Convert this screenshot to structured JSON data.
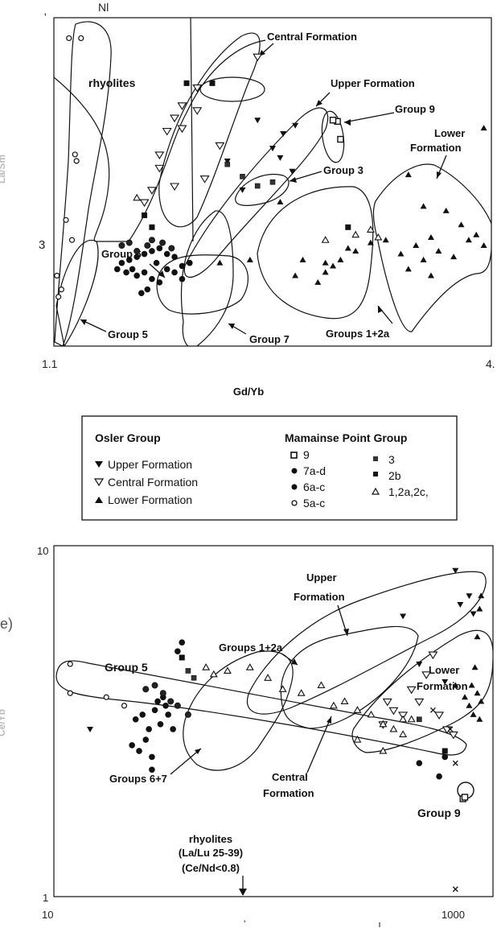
{
  "chart_data": [
    {
      "type": "scatter",
      "title": "",
      "top_fragment": "Nl",
      "xlabel": "Gd/Yb",
      "ylabel_fragment": "La/Sm",
      "x_ticks": [
        "1.1",
        "4."
      ],
      "y_ticks": [
        "3"
      ],
      "top_tick_fragment": "'",
      "annotations": [
        "Central Formation",
        "rhyolites",
        "Upper Formation",
        "Group 9",
        "Lower Formation",
        "Group 3",
        "Group 6",
        "Group 5",
        "Group 7",
        "Groups 1+2a"
      ],
      "groups": [
        {
          "name": "Upper Formation",
          "symbol": "down-triangle-filled",
          "points": [
            [
              2.45,
              6.4
            ],
            [
              2.62,
              5.9
            ],
            [
              2.6,
              5.1
            ],
            [
              2.68,
              4.7
            ],
            [
              2.35,
              4.2
            ],
            [
              2.55,
              5.4
            ],
            [
              2.7,
              6.2
            ],
            [
              2.25,
              5.0
            ]
          ]
        },
        {
          "name": "Central Formation",
          "symbol": "down-triangle-open",
          "points": [
            [
              2.45,
              9.4
            ],
            [
              2.05,
              7.8
            ],
            [
              1.95,
              7.0
            ],
            [
              1.9,
              6.5
            ],
            [
              1.85,
              6.0
            ],
            [
              1.8,
              5.2
            ],
            [
              1.8,
              4.8
            ],
            [
              1.75,
              4.2
            ],
            [
              1.7,
              3.9
            ],
            [
              2.2,
              5.5
            ],
            [
              2.05,
              6.8
            ],
            [
              1.95,
              6.1
            ],
            [
              2.1,
              4.5
            ],
            [
              1.9,
              4.3
            ]
          ]
        },
        {
          "name": "Lower Formation",
          "symbol": "up-triangle-filled",
          "points": [
            [
              3.95,
              6.1
            ],
            [
              3.45,
              4.6
            ],
            [
              3.55,
              3.8
            ],
            [
              3.7,
              3.7
            ],
            [
              3.8,
              3.4
            ],
            [
              3.9,
              3.2
            ],
            [
              3.95,
              3.0
            ],
            [
              3.6,
              3.15
            ],
            [
              3.5,
              3.0
            ],
            [
              3.3,
              3.1
            ],
            [
              3.65,
              2.9
            ],
            [
              3.4,
              2.85
            ],
            [
              3.75,
              2.8
            ],
            [
              3.2,
              3.05
            ],
            [
              3.85,
              3.1
            ],
            [
              3.1,
              2.9
            ],
            [
              3.55,
              2.75
            ],
            [
              3.45,
              2.6
            ],
            [
              3.6,
              2.5
            ],
            [
              2.6,
              3.9
            ],
            [
              2.75,
              2.75
            ],
            [
              2.9,
              2.7
            ],
            [
              2.95,
              2.65
            ],
            [
              3.0,
              2.75
            ],
            [
              2.9,
              2.55
            ],
            [
              3.05,
              2.95
            ],
            [
              2.2,
              2.7
            ],
            [
              2.4,
              2.75
            ],
            [
              2.7,
              2.5
            ],
            [
              2.85,
              2.4
            ]
          ]
        },
        {
          "name": "9",
          "symbol": "open-square",
          "points": [
            [
              2.98,
              6.35
            ],
            [
              3.0,
              5.7
            ],
            [
              2.95,
              6.4
            ]
          ]
        },
        {
          "name": "7a-d",
          "symbol": "filled-circle",
          "points": [
            [
              1.55,
              2.7
            ],
            [
              1.6,
              2.75
            ],
            [
              1.65,
              2.8
            ],
            [
              1.7,
              2.85
            ],
            [
              1.75,
              2.9
            ],
            [
              1.8,
              2.95
            ],
            [
              1.85,
              2.85
            ],
            [
              1.9,
              2.8
            ],
            [
              1.78,
              2.7
            ],
            [
              1.85,
              2.6
            ],
            [
              1.7,
              2.55
            ],
            [
              1.65,
              2.5
            ],
            [
              1.75,
              2.45
            ],
            [
              1.8,
              2.4
            ],
            [
              1.9,
              2.55
            ],
            [
              1.95,
              2.65
            ],
            [
              2.0,
              2.7
            ],
            [
              1.72,
              2.3
            ],
            [
              1.68,
              2.25
            ],
            [
              1.62,
              2.6
            ],
            [
              1.58,
              2.55
            ],
            [
              1.52,
              2.6
            ],
            [
              1.95,
              2.45
            ]
          ]
        },
        {
          "name": "6a-c",
          "symbol": "filled-circle-dot",
          "points": [
            [
              1.55,
              3.0
            ],
            [
              1.6,
              3.05
            ],
            [
              1.75,
              3.1
            ],
            [
              1.82,
              3.05
            ],
            [
              1.88,
              2.95
            ],
            [
              1.72,
              3.0
            ],
            [
              1.65,
              2.9
            ]
          ]
        },
        {
          "name": "5a-c",
          "symbol": "open-circle",
          "points": [
            [
              1.2,
              10.5
            ],
            [
              1.28,
              10.5
            ],
            [
              1.18,
              3.5
            ],
            [
              1.22,
              3.1
            ],
            [
              1.12,
              2.5
            ],
            [
              1.15,
              2.3
            ],
            [
              1.13,
              2.2
            ],
            [
              1.24,
              5.2
            ],
            [
              1.25,
              5.0
            ]
          ]
        },
        {
          "name": "3",
          "symbol": "filled-square-small",
          "points": [
            [
              2.25,
              4.9
            ],
            [
              2.45,
              4.3
            ],
            [
              2.55,
              4.4
            ],
            [
              2.35,
              4.55
            ]
          ]
        },
        {
          "name": "2b",
          "symbol": "filled-square",
          "points": [
            [
              1.98,
              8.0
            ],
            [
              2.15,
              8.0
            ],
            [
              1.7,
              3.6
            ],
            [
              1.75,
              3.35
            ],
            [
              3.05,
              3.35
            ]
          ]
        },
        {
          "name": "1,2a,2c,",
          "symbol": "open-up-triangle",
          "points": [
            [
              1.65,
              4.0
            ],
            [
              3.2,
              3.3
            ],
            [
              3.25,
              3.15
            ],
            [
              3.1,
              3.2
            ],
            [
              2.9,
              3.1
            ]
          ]
        }
      ]
    },
    {
      "type": "scatter",
      "title": "",
      "xlabel": "",
      "ylabel_fragment": "Ce/Yb",
      "side_fragment": "e)",
      "x_scale": "log",
      "y_scale": "log",
      "x_ticks": [
        "10",
        "1000"
      ],
      "y_ticks": [
        "10",
        "1"
      ],
      "annotations": [
        "Upper Formation",
        "Groups 1+2a",
        "Group 5",
        "Lower Formation",
        "Groups 6+7",
        "Central Formation",
        "Group 9",
        "rhyolites",
        "(La/Lu 25-39)",
        "(Ce/Nd<0.8)"
      ],
      "groups": [
        {
          "name": "Upper Formation",
          "symbol": "down-triangle-filled",
          "points": [
            [
              900,
              8.5
            ],
            [
              1050,
              7.2
            ],
            [
              950,
              6.8
            ],
            [
              1100,
              6.4
            ],
            [
              500,
              6.3
            ],
            [
              15,
              3.0
            ],
            [
              600,
              4.6
            ],
            [
              800,
              4.1
            ]
          ]
        },
        {
          "name": "Central Formation",
          "symbol": "down-triangle-open",
          "points": [
            [
              700,
              4.9
            ],
            [
              650,
              4.3
            ],
            [
              550,
              3.9
            ],
            [
              600,
              3.6
            ],
            [
              500,
              3.3
            ],
            [
              450,
              3.4
            ],
            [
              400,
              3.1
            ],
            [
              420,
              3.6
            ],
            [
              750,
              3.3
            ],
            [
              820,
              3.0
            ],
            [
              880,
              2.9
            ]
          ]
        },
        {
          "name": "Lower Formation",
          "symbol": "up-triangle-filled",
          "points": [
            [
              1200,
              7.2
            ],
            [
              1180,
              6.6
            ],
            [
              1150,
              5.5
            ],
            [
              1120,
              4.5
            ],
            [
              1080,
              4.0
            ],
            [
              1150,
              3.8
            ],
            [
              1200,
              3.6
            ],
            [
              1100,
              3.3
            ],
            [
              1050,
              3.5
            ],
            [
              900,
              4.0
            ],
            [
              1000,
              3.7
            ],
            [
              1180,
              3.2
            ]
          ]
        },
        {
          "name": "9",
          "symbol": "open-square",
          "points": [
            [
              980,
              1.9
            ],
            [
              1000,
              1.92
            ]
          ]
        },
        {
          "name": "7a-d",
          "symbol": "filled-circle",
          "points": [
            [
              25,
              3.2
            ],
            [
              27,
              3.3
            ],
            [
              29,
              3.0
            ],
            [
              31,
              3.4
            ],
            [
              33,
              3.1
            ],
            [
              35,
              3.5
            ],
            [
              28,
              2.8
            ],
            [
              26,
              2.6
            ],
            [
              24,
              2.7
            ],
            [
              30,
              2.5
            ],
            [
              32,
              3.6
            ],
            [
              34,
              3.7
            ],
            [
              36,
              3.3
            ],
            [
              38,
              3.0
            ],
            [
              30,
              2.3
            ],
            [
              40,
              5.0
            ],
            [
              42,
              5.3
            ],
            [
              600,
              2.4
            ],
            [
              750,
              2.2
            ],
            [
              800,
              2.5
            ]
          ]
        },
        {
          "name": "6a-c",
          "symbol": "filled-circle-dot",
          "points": [
            [
              28,
              3.9
            ],
            [
              31,
              4.0
            ],
            [
              34,
              3.8
            ],
            [
              37,
              3.6
            ],
            [
              40,
              3.5
            ],
            [
              45,
              3.3
            ]
          ]
        },
        {
          "name": "5a-c",
          "symbol": "open-circle",
          "points": [
            [
              12,
              4.6
            ],
            [
              12,
              3.8
            ],
            [
              18,
              3.7
            ],
            [
              22,
              3.5
            ]
          ]
        },
        {
          "name": "3",
          "symbol": "filled-square-small",
          "points": [
            [
              45,
              4.4
            ],
            [
              48,
              4.2
            ],
            [
              600,
              3.2
            ]
          ]
        },
        {
          "name": "2b",
          "symbol": "filled-square",
          "points": [
            [
              42,
              4.8
            ],
            [
              800,
              2.6
            ]
          ]
        },
        {
          "name": "1,2a,2c,",
          "symbol": "open-up-triangle",
          "points": [
            [
              55,
              4.5
            ],
            [
              60,
              4.3
            ],
            [
              70,
              4.4
            ],
            [
              90,
              4.5
            ],
            [
              110,
              4.2
            ],
            [
              130,
              3.9
            ],
            [
              160,
              3.8
            ],
            [
              200,
              4.0
            ],
            [
              230,
              3.5
            ],
            [
              260,
              3.6
            ],
            [
              300,
              3.4
            ],
            [
              350,
              3.3
            ],
            [
              400,
              3.1
            ],
            [
              450,
              3.0
            ],
            [
              500,
              3.2
            ],
            [
              550,
              3.2
            ],
            [
              300,
              2.8
            ],
            [
              400,
              2.6
            ],
            [
              500,
              2.9
            ]
          ]
        },
        {
          "name": "x",
          "symbol": "cross",
          "points": [
            [
              700,
              3.4
            ],
            [
              850,
              3.0
            ],
            [
              900,
              2.4
            ],
            [
              900,
              1.05
            ]
          ]
        }
      ]
    }
  ],
  "legend": {
    "left_title": "Osler Group",
    "left_items": [
      "Upper Formation",
      "Central Formation",
      "Lower Formation"
    ],
    "right_title": "Mamainse Point Group",
    "right_col1": [
      "9",
      "7a-d",
      "6a-c",
      "5a-c"
    ],
    "right_col2": [
      "3",
      "2b",
      "1,2a,2c,"
    ]
  },
  "bottom_fragment": "'"
}
